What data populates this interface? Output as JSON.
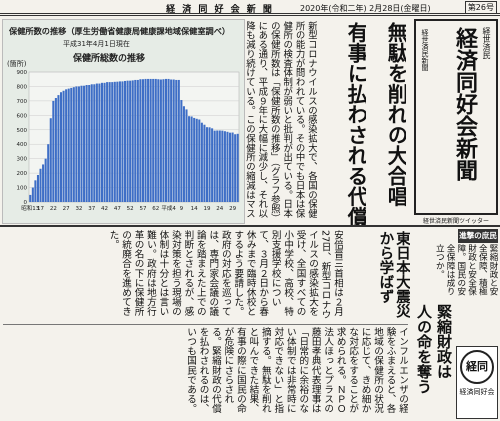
{
  "header": {
    "paper_name": "経 済 同 好 会 新 聞",
    "date": "2020年(令和二年) 2月28日(金曜日)",
    "issue": "第26号"
  },
  "chart": {
    "type": "bar",
    "title": "保健所数の推移（厚生労働省健康局健康課地域保健室調べ）",
    "subtitle": "平成31年4月1日現在",
    "inner_title": "保健所総数の推移",
    "y_label": "(箇所)",
    "categories": [
      "昭和13",
      null,
      null,
      null,
      "17",
      null,
      null,
      null,
      null,
      "22",
      null,
      null,
      null,
      null,
      "27",
      null,
      null,
      null,
      null,
      "32",
      null,
      null,
      null,
      null,
      "37",
      null,
      null,
      null,
      null,
      "42",
      null,
      null,
      null,
      null,
      "47",
      null,
      null,
      null,
      null,
      "52",
      null,
      null,
      null,
      null,
      "57",
      null,
      null,
      null,
      null,
      "62",
      null,
      null,
      null,
      null,
      "平成4",
      null,
      null,
      null,
      null,
      "9",
      null,
      null,
      null,
      null,
      "14",
      null,
      null,
      null,
      null,
      "19",
      null,
      null,
      null,
      null,
      "24",
      null,
      null,
      null,
      null,
      "29",
      null,
      null
    ],
    "values": [
      49,
      100,
      150,
      187,
      230,
      260,
      300,
      400,
      580,
      700,
      720,
      740,
      760,
      770,
      780,
      785,
      790,
      795,
      800,
      800,
      805,
      805,
      810,
      810,
      815,
      815,
      820,
      820,
      825,
      825,
      830,
      830,
      830,
      832,
      833,
      835,
      835,
      838,
      840,
      840,
      842,
      845,
      845,
      850,
      850,
      852,
      852,
      852,
      852,
      852,
      850,
      848,
      850,
      852,
      852,
      848,
      848,
      845,
      845,
      706,
      663,
      641,
      594,
      592,
      582,
      576,
      571,
      549,
      535,
      518,
      517,
      510,
      494,
      495,
      495,
      494,
      490,
      486,
      480,
      481,
      469,
      472
    ],
    "color": "#3e6ec6",
    "ylim": [
      0,
      900
    ],
    "yticks": [
      0,
      100,
      200,
      300,
      400,
      500,
      600,
      700,
      800,
      900
    ]
  },
  "intro_text": "新型コロナウイルスの感染拡大で、各国の保健所の能力が問われている。その中でも日本は保健所の検査体制が弱いと批判が出ている。日本の保健所数は「保健所数の推移」（グラフ参照）にある通り、平成９年に大幅に減少し、それ以降も減り続けている。この保健所の縮減はマスメディアを通じて国民の間で徐々に形成されていき、現在に至るのではないか。",
  "headline": [
    "無駄を削れの大合唱",
    "有事に払わされる代償"
  ],
  "masthead": {
    "tagline": "経世済民",
    "name": "経済同好会新聞",
    "sub": "経世済民新聞",
    "note": "経世済民新聞ツイッター"
  },
  "subheadline": "東日本大震災から学ばず",
  "body1": "安倍晋三首相は２月27日、新型コロナウイルスの感染拡大を受け、全国すべての小中学校、高校、特別支援学校について、３月２日から春休みまで臨時休校とするよう要請した。政府の対応を巡っては、専門家会議の議論を踏まえた上での判断とされるが、感染対策を担う現場の体制は十分とは言い難い。政府は地方行革の名の下に保健所の統廃合を進めてきた。",
  "body2": "インフルエンザの経験をふまえると、各地域の保健所の状況に応じて、きめ細かな対応をすることが求められる。ＮＰＯ法人ほっとプラスの藤田孝典代表理事は「日常的に余裕のない体制では非常時に対応できない」と指摘する。無駄を削れと叫んできた結果、有事の際に国民の命が危険にさらされる。緊縮財政の代償を払わされるのは、いつも国民である。",
  "side_title": "進撃の庶民",
  "side_text": "緊縮財政と安全保障、積極財政と安全保障。国民の安全保障は成り立つか。",
  "headline2": [
    "緊縮財政は",
    "人の命を奪う"
  ],
  "logo": {
    "mark": "経同",
    "name": "経済同好会"
  }
}
